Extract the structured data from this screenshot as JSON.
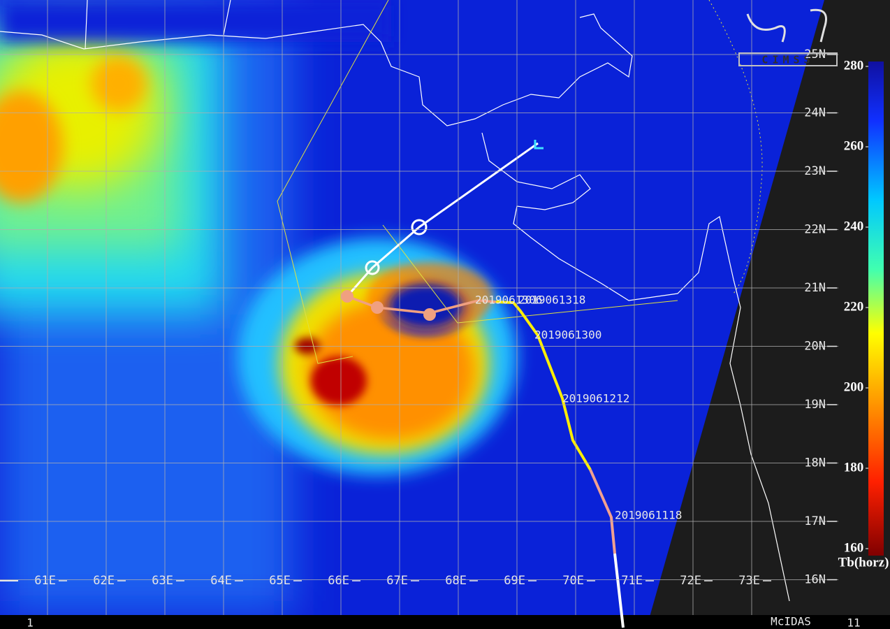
{
  "header": {
    "logo": "CIMSS"
  },
  "grid": {
    "lon_labels": [
      "61E",
      "62E",
      "63E",
      "64E",
      "65E",
      "66E",
      "67E",
      "68E",
      "69E",
      "70E",
      "71E",
      "72E",
      "73E"
    ],
    "lat_labels": [
      "25N",
      "24N",
      "23N",
      "22N",
      "21N",
      "20N",
      "19N",
      "18N",
      "17N",
      "16N"
    ]
  },
  "track_labels": [
    "2019061306",
    "2019061318",
    "2019061300",
    "2019061212",
    "2019061118"
  ],
  "colorbar": {
    "ticks": [
      280,
      260,
      240,
      220,
      200,
      180,
      160
    ],
    "label": "Tb(horz)"
  },
  "footer": {
    "left": "1",
    "center": "McIDAS",
    "right": "11"
  }
}
